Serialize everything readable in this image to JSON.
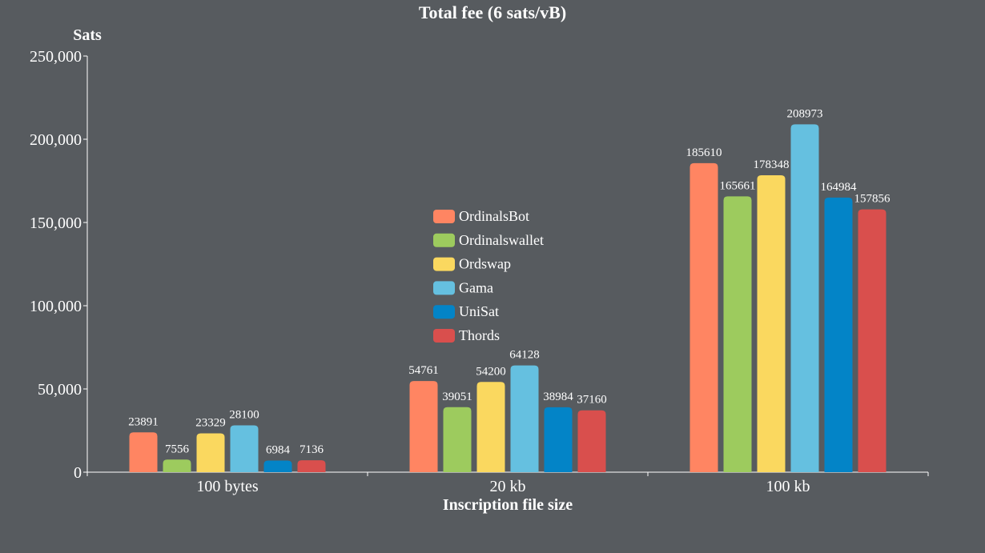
{
  "chart_data": {
    "type": "bar",
    "title": "Total fee (6 sats/vB)",
    "ylabel": "Sats",
    "xlabel": "Inscription file size",
    "ylim": [
      0,
      250000
    ],
    "yticks": [
      0,
      50000,
      100000,
      150000,
      200000,
      250000
    ],
    "ytick_labels": [
      "0",
      "50,000",
      "100,000",
      "150,000",
      "200,000",
      "250,000"
    ],
    "categories": [
      "100 bytes",
      "20 kb",
      "100 kb"
    ],
    "legend_position": "center",
    "series": [
      {
        "name": "OrdinalsBot",
        "color": "#ff8562",
        "values": [
          23891,
          54761,
          185610
        ]
      },
      {
        "name": "Ordinalswallet",
        "color": "#9dcb5e",
        "values": [
          7556,
          39051,
          165661
        ]
      },
      {
        "name": "Ordswap",
        "color": "#fad85f",
        "values": [
          23329,
          54200,
          178348
        ]
      },
      {
        "name": "Gama",
        "color": "#65c0e0",
        "values": [
          28100,
          64128,
          208973
        ]
      },
      {
        "name": "UniSat",
        "color": "#0384c7",
        "values": [
          6984,
          38984,
          164984
        ]
      },
      {
        "name": "Thords",
        "color": "#d94f4d",
        "values": [
          7136,
          37160,
          157856
        ]
      }
    ]
  }
}
